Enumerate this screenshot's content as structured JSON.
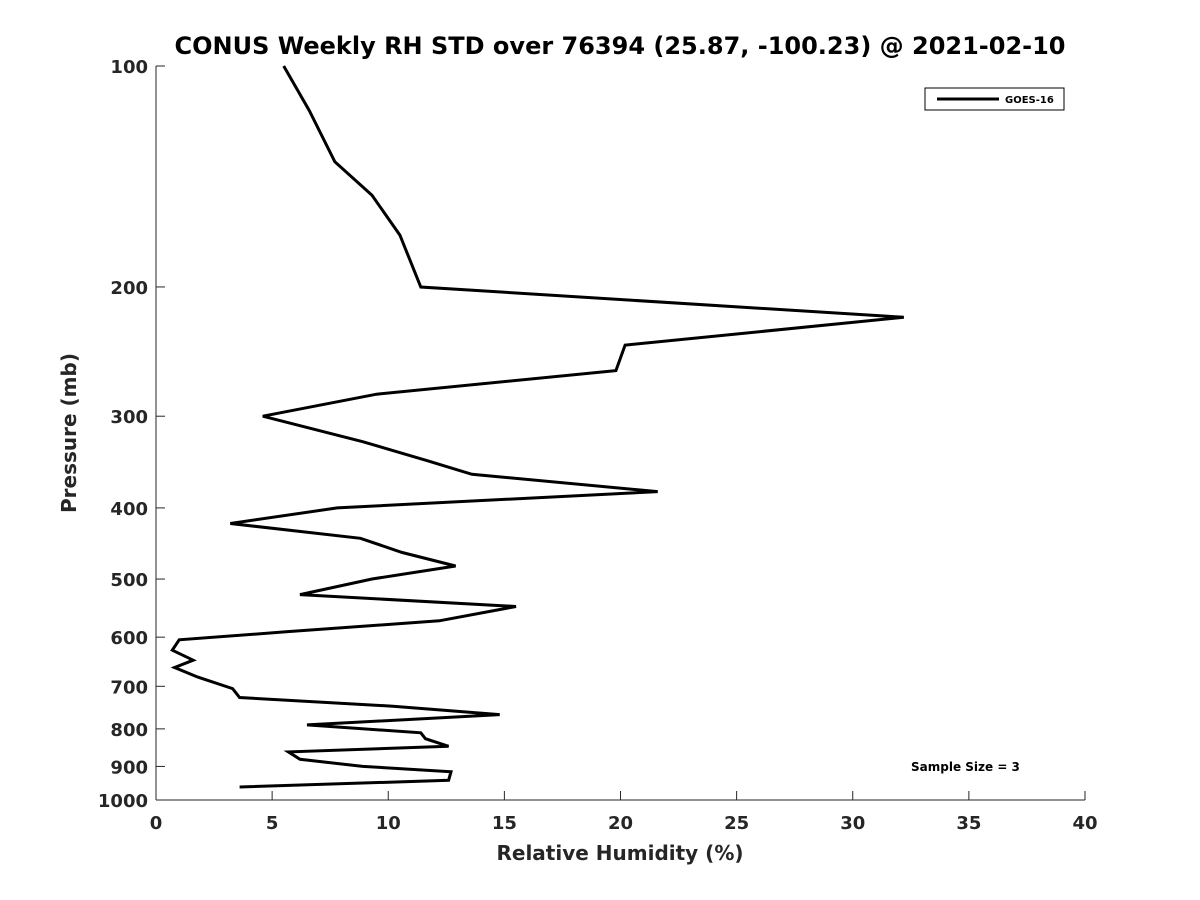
{
  "chart_data": {
    "type": "line",
    "title": "CONUS Weekly RH STD over 76394 (25.87, -100.23) @ 2021-02-10",
    "xlabel": "Relative Humidity (%)",
    "ylabel": "Pressure (mb)",
    "xlim": [
      0,
      40
    ],
    "ylim": [
      100,
      1000
    ],
    "yscale": "log",
    "y_reversed": true,
    "xticks": [
      "0",
      "5",
      "10",
      "15",
      "20",
      "25",
      "30",
      "35",
      "40"
    ],
    "yticks": [
      "100",
      "200",
      "300",
      "400",
      "500",
      "600",
      "700",
      "800",
      "900",
      "1000"
    ],
    "grid": false,
    "legend_position": "top-right",
    "annotation": "Sample Size = 3",
    "series": [
      {
        "name": "GOES-16",
        "color": "#000000",
        "points": [
          [
            5.5,
            100
          ],
          [
            6.6,
            115
          ],
          [
            7.7,
            135
          ],
          [
            9.3,
            150
          ],
          [
            10.5,
            170
          ],
          [
            11.4,
            200
          ],
          [
            32.2,
            220
          ],
          [
            20.2,
            240
          ],
          [
            19.8,
            260
          ],
          [
            9.5,
            280
          ],
          [
            4.6,
            300
          ],
          [
            8.9,
            325
          ],
          [
            11.7,
            345
          ],
          [
            13.6,
            360
          ],
          [
            21.6,
            380
          ],
          [
            7.8,
            400
          ],
          [
            3.2,
            420
          ],
          [
            8.8,
            440
          ],
          [
            10.6,
            460
          ],
          [
            12.9,
            480
          ],
          [
            9.3,
            500
          ],
          [
            6.2,
            525
          ],
          [
            15.5,
            545
          ],
          [
            12.2,
            570
          ],
          [
            5.6,
            590
          ],
          [
            1.0,
            605
          ],
          [
            0.7,
            625
          ],
          [
            1.6,
            645
          ],
          [
            0.8,
            660
          ],
          [
            1.8,
            680
          ],
          [
            3.3,
            705
          ],
          [
            3.6,
            725
          ],
          [
            10.2,
            745
          ],
          [
            14.8,
            765
          ],
          [
            6.5,
            790
          ],
          [
            11.4,
            810
          ],
          [
            11.6,
            825
          ],
          [
            12.6,
            845
          ],
          [
            5.7,
            860
          ],
          [
            6.2,
            880
          ],
          [
            8.9,
            900
          ],
          [
            12.7,
            915
          ],
          [
            12.6,
            940
          ],
          [
            3.6,
            960
          ]
        ]
      }
    ]
  }
}
